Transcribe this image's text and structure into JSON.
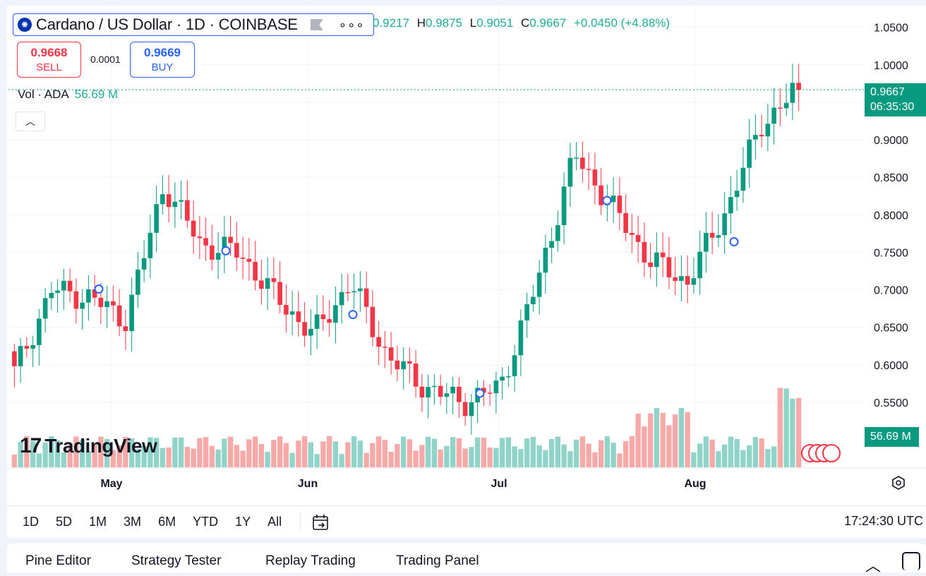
{
  "legend": {
    "title": "Cardano / US Dollar · 1D · COINBASE",
    "more": "∘∘∘",
    "coin_glyph": "✺"
  },
  "ohlc": {
    "o_label": "O",
    "o_value": "0.9217",
    "h_label": "H",
    "h_value": "0.9875",
    "l_label": "L",
    "l_value": "0.9051",
    "c_label": "C",
    "c_value": "0.9667",
    "change": "+0.0450 (+4.88%)"
  },
  "trade": {
    "sell_price": "0.9668",
    "sell_label": "SELL",
    "spread": "0.0001",
    "buy_price": "0.9669",
    "buy_label": "BUY"
  },
  "volume_legend": {
    "label": "Vol · ADA",
    "value": "56.69 M"
  },
  "collapse_glyph": "︿",
  "price_tags": {
    "last_price": "0.9667",
    "countdown": "06:35:30",
    "volume": "56.69 M"
  },
  "watermark": {
    "mark": "17",
    "text": "TradingView"
  },
  "range_buttons": [
    "1D",
    "5D",
    "1M",
    "3M",
    "6M",
    "YTD",
    "1Y",
    "All"
  ],
  "clock": "17:24:30 UTC",
  "bottom_tabs": [
    "Pine Editor",
    "Strategy Tester",
    "Replay Trading",
    "Trading Panel"
  ],
  "colors": {
    "up": "#089981",
    "down": "#f23645",
    "vol_up": "#8fd3c9",
    "vol_down": "#f7a9a7",
    "accent": "#2962ff"
  },
  "chart_data": {
    "type": "candlestick",
    "price_axis_ticks": [
      "1.0500",
      "1.0000",
      "0.9500",
      "0.9000",
      "0.8500",
      "0.8000",
      "0.7500",
      "0.7000",
      "0.6500",
      "0.6000",
      "0.5500"
    ],
    "time_axis_ticks": [
      "May",
      "Jun",
      "Jul",
      "Aug"
    ],
    "ylim": [
      0.5,
      1.06
    ],
    "last_price": 0.9667,
    "series": [
      {
        "date": "Apr-15",
        "values": [
          0.6,
          0.62,
          0.59
        ]
      },
      {
        "date": "Apr-25",
        "values": [
          0.62,
          0.71,
          0.7
        ]
      },
      {
        "date": "May-01",
        "values": [
          0.7,
          0.72,
          0.69
        ]
      },
      {
        "date": "May-10",
        "values": [
          0.69,
          0.65,
          0.66
        ]
      },
      {
        "date": "May-15",
        "values": [
          0.67,
          0.85,
          0.84
        ]
      },
      {
        "date": "May-22",
        "values": [
          0.84,
          0.75,
          0.76
        ]
      },
      {
        "date": "May-28",
        "values": [
          0.75,
          0.81,
          0.75
        ]
      },
      {
        "date": "Jun-03",
        "values": [
          0.76,
          0.69,
          0.69
        ]
      },
      {
        "date": "Jun-10",
        "values": [
          0.69,
          0.62,
          0.64
        ]
      },
      {
        "date": "Jun-14",
        "values": [
          0.65,
          0.72,
          0.71
        ]
      },
      {
        "date": "Jun-20",
        "values": [
          0.7,
          0.6,
          0.61
        ]
      },
      {
        "date": "Jun-27",
        "values": [
          0.6,
          0.53,
          0.57
        ]
      },
      {
        "date": "Jul-03",
        "values": [
          0.57,
          0.55,
          0.55
        ]
      },
      {
        "date": "Jul-08",
        "values": [
          0.56,
          0.6,
          0.57
        ]
      },
      {
        "date": "Jul-15",
        "values": [
          0.58,
          0.72,
          0.71
        ]
      },
      {
        "date": "Jul-22",
        "values": [
          0.71,
          0.9,
          0.88
        ]
      },
      {
        "date": "Jul-28",
        "values": [
          0.89,
          0.81,
          0.81
        ]
      },
      {
        "date": "Aug-02",
        "values": [
          0.82,
          0.76,
          0.74
        ]
      },
      {
        "date": "Aug-06",
        "values": [
          0.73,
          0.7,
          0.71
        ]
      },
      {
        "date": "Aug-12",
        "values": [
          0.72,
          0.82,
          0.8
        ]
      },
      {
        "date": "Aug-17",
        "values": [
          0.81,
          0.97,
          0.92
        ]
      },
      {
        "date": "Aug-21",
        "values": [
          0.92,
          0.99,
          0.97
        ]
      }
    ]
  }
}
